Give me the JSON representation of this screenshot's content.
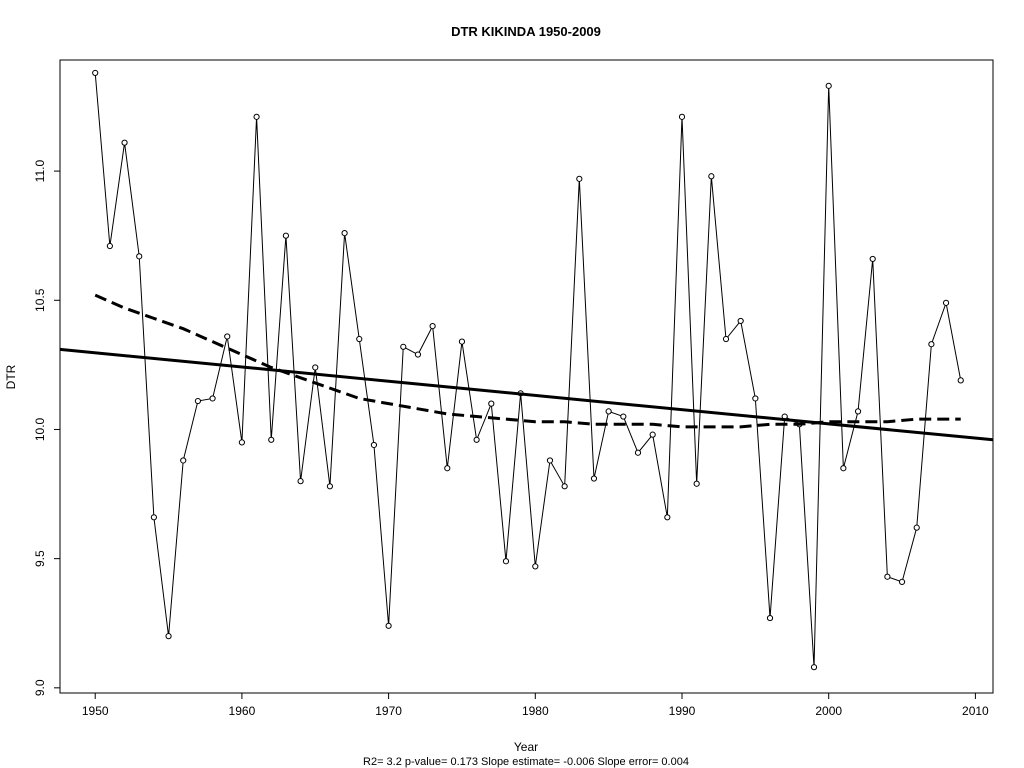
{
  "chart_data": {
    "type": "line",
    "title": "DTR   KIKINDA 1950-2009",
    "xlabel": "Year",
    "ylabel": "DTR",
    "footnote": "R2= 3.2  p-value= 0.173  Slope estimate= -0.006  Slope error= 0.004",
    "xlim": [
      1947.6,
      2011.2
    ],
    "ylim": [
      8.98,
      11.43
    ],
    "xticks": [
      1950,
      1960,
      1970,
      1980,
      1990,
      2000,
      2010
    ],
    "yticks": [
      "9.0",
      "9.5",
      "10.0",
      "10.5",
      "11.0"
    ],
    "grid": false,
    "x": [
      1950,
      1951,
      1952,
      1953,
      1954,
      1955,
      1956,
      1957,
      1958,
      1959,
      1960,
      1961,
      1962,
      1963,
      1964,
      1965,
      1966,
      1967,
      1968,
      1969,
      1970,
      1971,
      1972,
      1973,
      1974,
      1975,
      1976,
      1977,
      1978,
      1979,
      1980,
      1981,
      1982,
      1983,
      1984,
      1985,
      1986,
      1987,
      1988,
      1989,
      1990,
      1991,
      1992,
      1993,
      1994,
      1995,
      1996,
      1997,
      1998,
      1999,
      2000,
      2001,
      2002,
      2003,
      2004,
      2005,
      2006,
      2007,
      2008,
      2009
    ],
    "series": [
      {
        "style": "line-points",
        "values": [
          11.38,
          10.71,
          11.11,
          10.67,
          9.66,
          9.2,
          9.88,
          10.11,
          10.12,
          10.36,
          9.95,
          11.21,
          9.96,
          10.75,
          9.8,
          10.24,
          9.78,
          10.76,
          10.35,
          9.94,
          9.24,
          10.32,
          10.29,
          10.4,
          9.85,
          10.34,
          9.96,
          10.1,
          9.49,
          10.14,
          9.47,
          9.88,
          9.78,
          10.97,
          9.81,
          10.07,
          10.05,
          9.91,
          9.98,
          9.66,
          11.21,
          9.79,
          10.98,
          10.35,
          10.42,
          10.12,
          9.27,
          10.05,
          10.02,
          9.08,
          11.33,
          9.85,
          10.07,
          10.66,
          9.43,
          9.41,
          9.62,
          10.33,
          10.49,
          10.19
        ]
      },
      {
        "style": "solid-thick",
        "x": [
          1947.6,
          2011.2
        ],
        "values": [
          10.31,
          9.96
        ]
      },
      {
        "style": "dashed-thick",
        "x": [
          1950,
          1952,
          1954,
          1956,
          1958,
          1960,
          1962,
          1964,
          1966,
          1968,
          1970,
          1972,
          1974,
          1976,
          1978,
          1980,
          1982,
          1984,
          1986,
          1988,
          1990,
          1992,
          1994,
          1996,
          1998,
          2000,
          2002,
          2004,
          2006,
          2008,
          2009
        ],
        "values": [
          10.52,
          10.47,
          10.43,
          10.39,
          10.34,
          10.29,
          10.24,
          10.2,
          10.16,
          10.12,
          10.1,
          10.08,
          10.06,
          10.05,
          10.04,
          10.03,
          10.03,
          10.02,
          10.02,
          10.02,
          10.01,
          10.01,
          10.01,
          10.02,
          10.02,
          10.03,
          10.03,
          10.03,
          10.04,
          10.04,
          10.04
        ]
      }
    ]
  }
}
